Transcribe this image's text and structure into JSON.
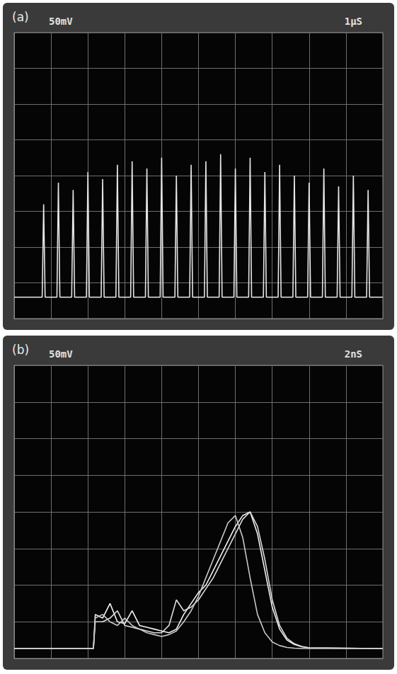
{
  "chart_data": [
    {
      "type": "line",
      "title": "(a)",
      "annotations": [
        "50mV",
        "1μS"
      ],
      "x": [
        0,
        0.76,
        0.8,
        0.84,
        1.16,
        1.2,
        1.24,
        1.56,
        1.6,
        1.64,
        1.96,
        2,
        2.04,
        2.36,
        2.4,
        2.44,
        2.76,
        2.8,
        2.84,
        3.16,
        3.2,
        3.24,
        3.56,
        3.6,
        3.64,
        3.96,
        4,
        4.04,
        4.36,
        4.4,
        4.44,
        4.76,
        4.8,
        4.84,
        5.16,
        5.2,
        5.24,
        5.56,
        5.6,
        5.64,
        5.96,
        6,
        6.04,
        6.36,
        6.4,
        6.44,
        6.76,
        6.8,
        6.84,
        7.16,
        7.2,
        7.24,
        7.56,
        7.6,
        7.64,
        7.96,
        8,
        8.04,
        8.36,
        8.4,
        8.44,
        8.76,
        8.8,
        8.84,
        9.16,
        9.2,
        9.24,
        9.56,
        9.6,
        9.64,
        10
      ],
      "series": [
        {
          "color": "#e6e6e6",
          "values": [
            0.6,
            0.6,
            3.2,
            0.6,
            0.6,
            3.8,
            0.6,
            0.6,
            3.6,
            0.6,
            0.6,
            4.1,
            0.6,
            0.6,
            3.9,
            0.6,
            0.6,
            4.3,
            0.6,
            0.6,
            4.4,
            0.6,
            0.6,
            4.2,
            0.6,
            0.6,
            4.5,
            0.6,
            0.6,
            4.0,
            0.6,
            0.6,
            4.3,
            0.6,
            0.6,
            4.4,
            0.6,
            0.6,
            4.6,
            0.6,
            0.6,
            4.2,
            0.6,
            0.6,
            4.5,
            0.6,
            0.6,
            4.1,
            0.6,
            0.6,
            4.3,
            0.6,
            0.6,
            4.0,
            0.6,
            0.6,
            3.8,
            0.6,
            0.6,
            4.2,
            0.6,
            0.6,
            3.7,
            0.6,
            0.6,
            4.0,
            0.6,
            0.6,
            3.6,
            0.6,
            0.6
          ]
        }
      ],
      "xlim": [
        0,
        10
      ],
      "ylim": [
        0,
        8
      ],
      "xticks": [
        0,
        1,
        2,
        3,
        4,
        5,
        6,
        7,
        8,
        9,
        10
      ],
      "yticks": [
        0,
        1,
        2,
        3,
        4,
        5,
        6,
        7,
        8
      ],
      "grid": true,
      "tick_labels": false
    },
    {
      "type": "line",
      "title": "(b)",
      "annotations": [
        "50mV",
        "2nS"
      ],
      "x": [
        0,
        2.15,
        2.2,
        2.4,
        2.6,
        2.8,
        3.0,
        3.2,
        3.4,
        3.6,
        3.8,
        4.0,
        4.2,
        4.4,
        4.6,
        4.8,
        5.0,
        5.2,
        5.4,
        5.6,
        5.8,
        6.0,
        6.2,
        6.4,
        6.6,
        6.8,
        7.0,
        7.2,
        7.4,
        7.6,
        7.8,
        8.0,
        10
      ],
      "series": [
        {
          "color": "#f2f2f2",
          "values": [
            0.27,
            0.27,
            1.2,
            1.1,
            1.5,
            1.0,
            0.95,
            1.3,
            0.9,
            0.85,
            0.8,
            0.75,
            0.7,
            0.8,
            1.2,
            1.5,
            1.8,
            2.0,
            2.4,
            2.8,
            3.2,
            3.6,
            3.9,
            4.0,
            3.4,
            2.4,
            1.4,
            0.8,
            0.5,
            0.38,
            0.32,
            0.29,
            0.27
          ]
        },
        {
          "color": "#dcdcdc",
          "values": [
            0.27,
            0.27,
            1.0,
            1.0,
            1.1,
            1.3,
            0.9,
            0.85,
            0.8,
            0.75,
            0.7,
            0.7,
            0.9,
            1.6,
            1.3,
            1.4,
            1.6,
            1.9,
            2.2,
            2.6,
            3.0,
            3.4,
            3.8,
            4.0,
            3.6,
            2.7,
            1.6,
            0.9,
            0.55,
            0.4,
            0.33,
            0.29,
            0.27
          ]
        },
        {
          "color": "#c8c8c8",
          "values": [
            0.27,
            0.27,
            1.1,
            1.2,
            1.0,
            0.9,
            1.1,
            0.9,
            0.8,
            0.7,
            0.65,
            0.6,
            0.65,
            0.75,
            1.0,
            1.3,
            1.7,
            2.2,
            2.7,
            3.2,
            3.7,
            3.9,
            3.3,
            2.2,
            1.2,
            0.7,
            0.45,
            0.35,
            0.3,
            0.28,
            0.27,
            0.27,
            0.27
          ]
        }
      ],
      "xlim": [
        0,
        10
      ],
      "ylim": [
        0,
        8
      ],
      "xticks": [
        0,
        1,
        2,
        3,
        4,
        5,
        6,
        7,
        8,
        9,
        10
      ],
      "yticks": [
        0,
        1,
        2,
        3,
        4,
        5,
        6,
        7,
        8
      ],
      "grid": true,
      "tick_labels": false
    }
  ]
}
